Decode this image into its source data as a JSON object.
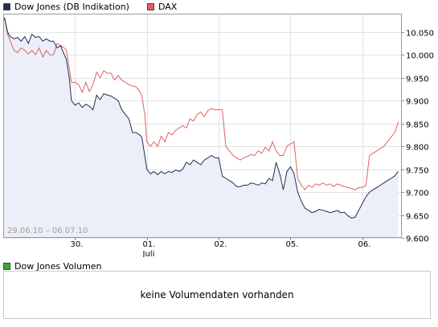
{
  "legend": {
    "dow_label": "Dow Jones (DB Indikation)",
    "dax_label": "DAX"
  },
  "colors": {
    "dow": "#1e2f55",
    "dax": "#e06060",
    "area": "#eceff8",
    "volume": "#33aa33"
  },
  "chart_data": {
    "type": "line",
    "range_label": "29.06.10 – 06.07.10",
    "x_ticks": [
      {
        "label": "30.",
        "sub": "",
        "pos": 1
      },
      {
        "label": "01.",
        "sub": "Juli",
        "pos": 2
      },
      {
        "label": "02.",
        "sub": "",
        "pos": 3
      },
      {
        "label": "05.",
        "sub": "",
        "pos": 4
      },
      {
        "label": "06.",
        "sub": "",
        "pos": 5
      }
    ],
    "x_range": [
      0.0,
      5.55
    ],
    "y_ticks": [
      "9.600",
      "9.650",
      "9.700",
      "9.750",
      "9.800",
      "9.850",
      "9.900",
      "9.950",
      "10.000",
      "10.050"
    ],
    "y_range": [
      9600,
      10090
    ],
    "grid": true,
    "series": [
      {
        "name": "Dow Jones (DB Indikation)",
        "points": [
          [
            0.0,
            10075
          ],
          [
            0.02,
            10080
          ],
          [
            0.06,
            10050
          ],
          [
            0.1,
            10040
          ],
          [
            0.15,
            10035
          ],
          [
            0.2,
            10038
          ],
          [
            0.25,
            10030
          ],
          [
            0.3,
            10040
          ],
          [
            0.35,
            10025
          ],
          [
            0.4,
            10045
          ],
          [
            0.45,
            10038
          ],
          [
            0.5,
            10040
          ],
          [
            0.55,
            10030
          ],
          [
            0.6,
            10035
          ],
          [
            0.65,
            10030
          ],
          [
            0.7,
            10030
          ],
          [
            0.75,
            10015
          ],
          [
            0.8,
            10020
          ],
          [
            0.85,
            10000
          ],
          [
            0.88,
            9990
          ],
          [
            0.92,
            9950
          ],
          [
            0.95,
            9900
          ],
          [
            1.0,
            9890
          ],
          [
            1.05,
            9895
          ],
          [
            1.1,
            9885
          ],
          [
            1.15,
            9892
          ],
          [
            1.2,
            9888
          ],
          [
            1.25,
            9880
          ],
          [
            1.3,
            9912
          ],
          [
            1.35,
            9902
          ],
          [
            1.4,
            9915
          ],
          [
            1.45,
            9912
          ],
          [
            1.5,
            9910
          ],
          [
            1.55,
            9905
          ],
          [
            1.6,
            9900
          ],
          [
            1.65,
            9880
          ],
          [
            1.7,
            9870
          ],
          [
            1.75,
            9860
          ],
          [
            1.8,
            9830
          ],
          [
            1.85,
            9830
          ],
          [
            1.9,
            9825
          ],
          [
            1.93,
            9820
          ],
          [
            1.97,
            9780
          ],
          [
            2.0,
            9750
          ],
          [
            2.05,
            9740
          ],
          [
            2.1,
            9745
          ],
          [
            2.15,
            9738
          ],
          [
            2.2,
            9745
          ],
          [
            2.25,
            9740
          ],
          [
            2.3,
            9745
          ],
          [
            2.35,
            9743
          ],
          [
            2.4,
            9748
          ],
          [
            2.45,
            9745
          ],
          [
            2.5,
            9750
          ],
          [
            2.55,
            9765
          ],
          [
            2.6,
            9760
          ],
          [
            2.65,
            9770
          ],
          [
            2.7,
            9765
          ],
          [
            2.75,
            9760
          ],
          [
            2.8,
            9770
          ],
          [
            2.85,
            9775
          ],
          [
            2.9,
            9780
          ],
          [
            2.95,
            9775
          ],
          [
            3.0,
            9775
          ],
          [
            3.05,
            9735
          ],
          [
            3.1,
            9730
          ],
          [
            3.15,
            9725
          ],
          [
            3.2,
            9720
          ],
          [
            3.25,
            9712
          ],
          [
            3.3,
            9712
          ],
          [
            3.35,
            9715
          ],
          [
            3.4,
            9715
          ],
          [
            3.45,
            9720
          ],
          [
            3.5,
            9718
          ],
          [
            3.55,
            9715
          ],
          [
            3.6,
            9720
          ],
          [
            3.65,
            9718
          ],
          [
            3.7,
            9730
          ],
          [
            3.75,
            9725
          ],
          [
            3.8,
            9765
          ],
          [
            3.85,
            9740
          ],
          [
            3.9,
            9705
          ],
          [
            3.95,
            9745
          ],
          [
            4.0,
            9755
          ],
          [
            4.05,
            9740
          ],
          [
            4.1,
            9700
          ],
          [
            4.15,
            9680
          ],
          [
            4.2,
            9665
          ],
          [
            4.25,
            9660
          ],
          [
            4.3,
            9655
          ],
          [
            4.35,
            9658
          ],
          [
            4.4,
            9662
          ],
          [
            4.45,
            9660
          ],
          [
            4.5,
            9658
          ],
          [
            4.55,
            9655
          ],
          [
            4.6,
            9657
          ],
          [
            4.65,
            9660
          ],
          [
            4.7,
            9655
          ],
          [
            4.75,
            9656
          ],
          [
            4.8,
            9648
          ],
          [
            4.85,
            9643
          ],
          [
            4.9,
            9645
          ],
          [
            4.95,
            9660
          ],
          [
            5.0,
            9675
          ],
          [
            5.05,
            9690
          ],
          [
            5.1,
            9700
          ],
          [
            5.15,
            9705
          ],
          [
            5.2,
            9710
          ],
          [
            5.25,
            9715
          ],
          [
            5.3,
            9720
          ],
          [
            5.35,
            9725
          ],
          [
            5.4,
            9730
          ],
          [
            5.45,
            9735
          ],
          [
            5.5,
            9745
          ]
        ]
      },
      {
        "name": "DAX",
        "points": [
          [
            0.0,
            10075
          ],
          [
            0.02,
            10080
          ],
          [
            0.06,
            10045
          ],
          [
            0.1,
            10030
          ],
          [
            0.15,
            10010
          ],
          [
            0.2,
            10005
          ],
          [
            0.25,
            10015
          ],
          [
            0.3,
            10010
          ],
          [
            0.35,
            10002
          ],
          [
            0.4,
            10010
          ],
          [
            0.45,
            10000
          ],
          [
            0.5,
            10015
          ],
          [
            0.55,
            9995
          ],
          [
            0.6,
            10010
          ],
          [
            0.65,
            10000
          ],
          [
            0.7,
            10000
          ],
          [
            0.75,
            10025
          ],
          [
            0.8,
            10020
          ],
          [
            0.85,
            10015
          ],
          [
            0.88,
            10010
          ],
          [
            0.92,
            9970
          ],
          [
            0.95,
            9940
          ],
          [
            1.0,
            9940
          ],
          [
            1.05,
            9935
          ],
          [
            1.1,
            9918
          ],
          [
            1.15,
            9940
          ],
          [
            1.2,
            9920
          ],
          [
            1.25,
            9935
          ],
          [
            1.3,
            9962
          ],
          [
            1.35,
            9950
          ],
          [
            1.4,
            9965
          ],
          [
            1.45,
            9960
          ],
          [
            1.5,
            9960
          ],
          [
            1.55,
            9945
          ],
          [
            1.6,
            9955
          ],
          [
            1.65,
            9945
          ],
          [
            1.7,
            9940
          ],
          [
            1.75,
            9935
          ],
          [
            1.8,
            9932
          ],
          [
            1.85,
            9930
          ],
          [
            1.9,
            9920
          ],
          [
            1.93,
            9910
          ],
          [
            1.97,
            9870
          ],
          [
            2.0,
            9810
          ],
          [
            2.05,
            9800
          ],
          [
            2.1,
            9810
          ],
          [
            2.15,
            9800
          ],
          [
            2.2,
            9822
          ],
          [
            2.25,
            9810
          ],
          [
            2.3,
            9830
          ],
          [
            2.35,
            9825
          ],
          [
            2.4,
            9835
          ],
          [
            2.45,
            9840
          ],
          [
            2.5,
            9845
          ],
          [
            2.55,
            9840
          ],
          [
            2.6,
            9860
          ],
          [
            2.65,
            9855
          ],
          [
            2.7,
            9870
          ],
          [
            2.75,
            9875
          ],
          [
            2.8,
            9865
          ],
          [
            2.85,
            9878
          ],
          [
            2.9,
            9883
          ],
          [
            2.95,
            9880
          ],
          [
            3.0,
            9880
          ],
          [
            3.05,
            9880
          ],
          [
            3.1,
            9800
          ],
          [
            3.15,
            9790
          ],
          [
            3.2,
            9780
          ],
          [
            3.25,
            9775
          ],
          [
            3.3,
            9770
          ],
          [
            3.35,
            9775
          ],
          [
            3.4,
            9778
          ],
          [
            3.45,
            9782
          ],
          [
            3.5,
            9780
          ],
          [
            3.55,
            9790
          ],
          [
            3.6,
            9785
          ],
          [
            3.65,
            9798
          ],
          [
            3.7,
            9790
          ],
          [
            3.75,
            9810
          ],
          [
            3.8,
            9790
          ],
          [
            3.85,
            9780
          ],
          [
            3.9,
            9780
          ],
          [
            3.95,
            9800
          ],
          [
            4.0,
            9805
          ],
          [
            4.05,
            9810
          ],
          [
            4.1,
            9730
          ],
          [
            4.15,
            9715
          ],
          [
            4.2,
            9705
          ],
          [
            4.25,
            9715
          ],
          [
            4.3,
            9710
          ],
          [
            4.35,
            9718
          ],
          [
            4.4,
            9715
          ],
          [
            4.45,
            9720
          ],
          [
            4.5,
            9715
          ],
          [
            4.55,
            9718
          ],
          [
            4.6,
            9712
          ],
          [
            4.65,
            9718
          ],
          [
            4.7,
            9715
          ],
          [
            4.75,
            9712
          ],
          [
            4.8,
            9710
          ],
          [
            4.85,
            9708
          ],
          [
            4.9,
            9705
          ],
          [
            4.95,
            9710
          ],
          [
            5.0,
            9710
          ],
          [
            5.05,
            9715
          ],
          [
            5.1,
            9780
          ],
          [
            5.15,
            9785
          ],
          [
            5.2,
            9790
          ],
          [
            5.25,
            9795
          ],
          [
            5.3,
            9800
          ],
          [
            5.35,
            9810
          ],
          [
            5.4,
            9820
          ],
          [
            5.45,
            9830
          ],
          [
            5.5,
            9853
          ]
        ]
      }
    ],
    "area_under": "Dow Jones (DB Indikation)"
  },
  "volume": {
    "legend_label": "Dow Jones Volumen",
    "empty_message": "keine Volumendaten vorhanden"
  }
}
